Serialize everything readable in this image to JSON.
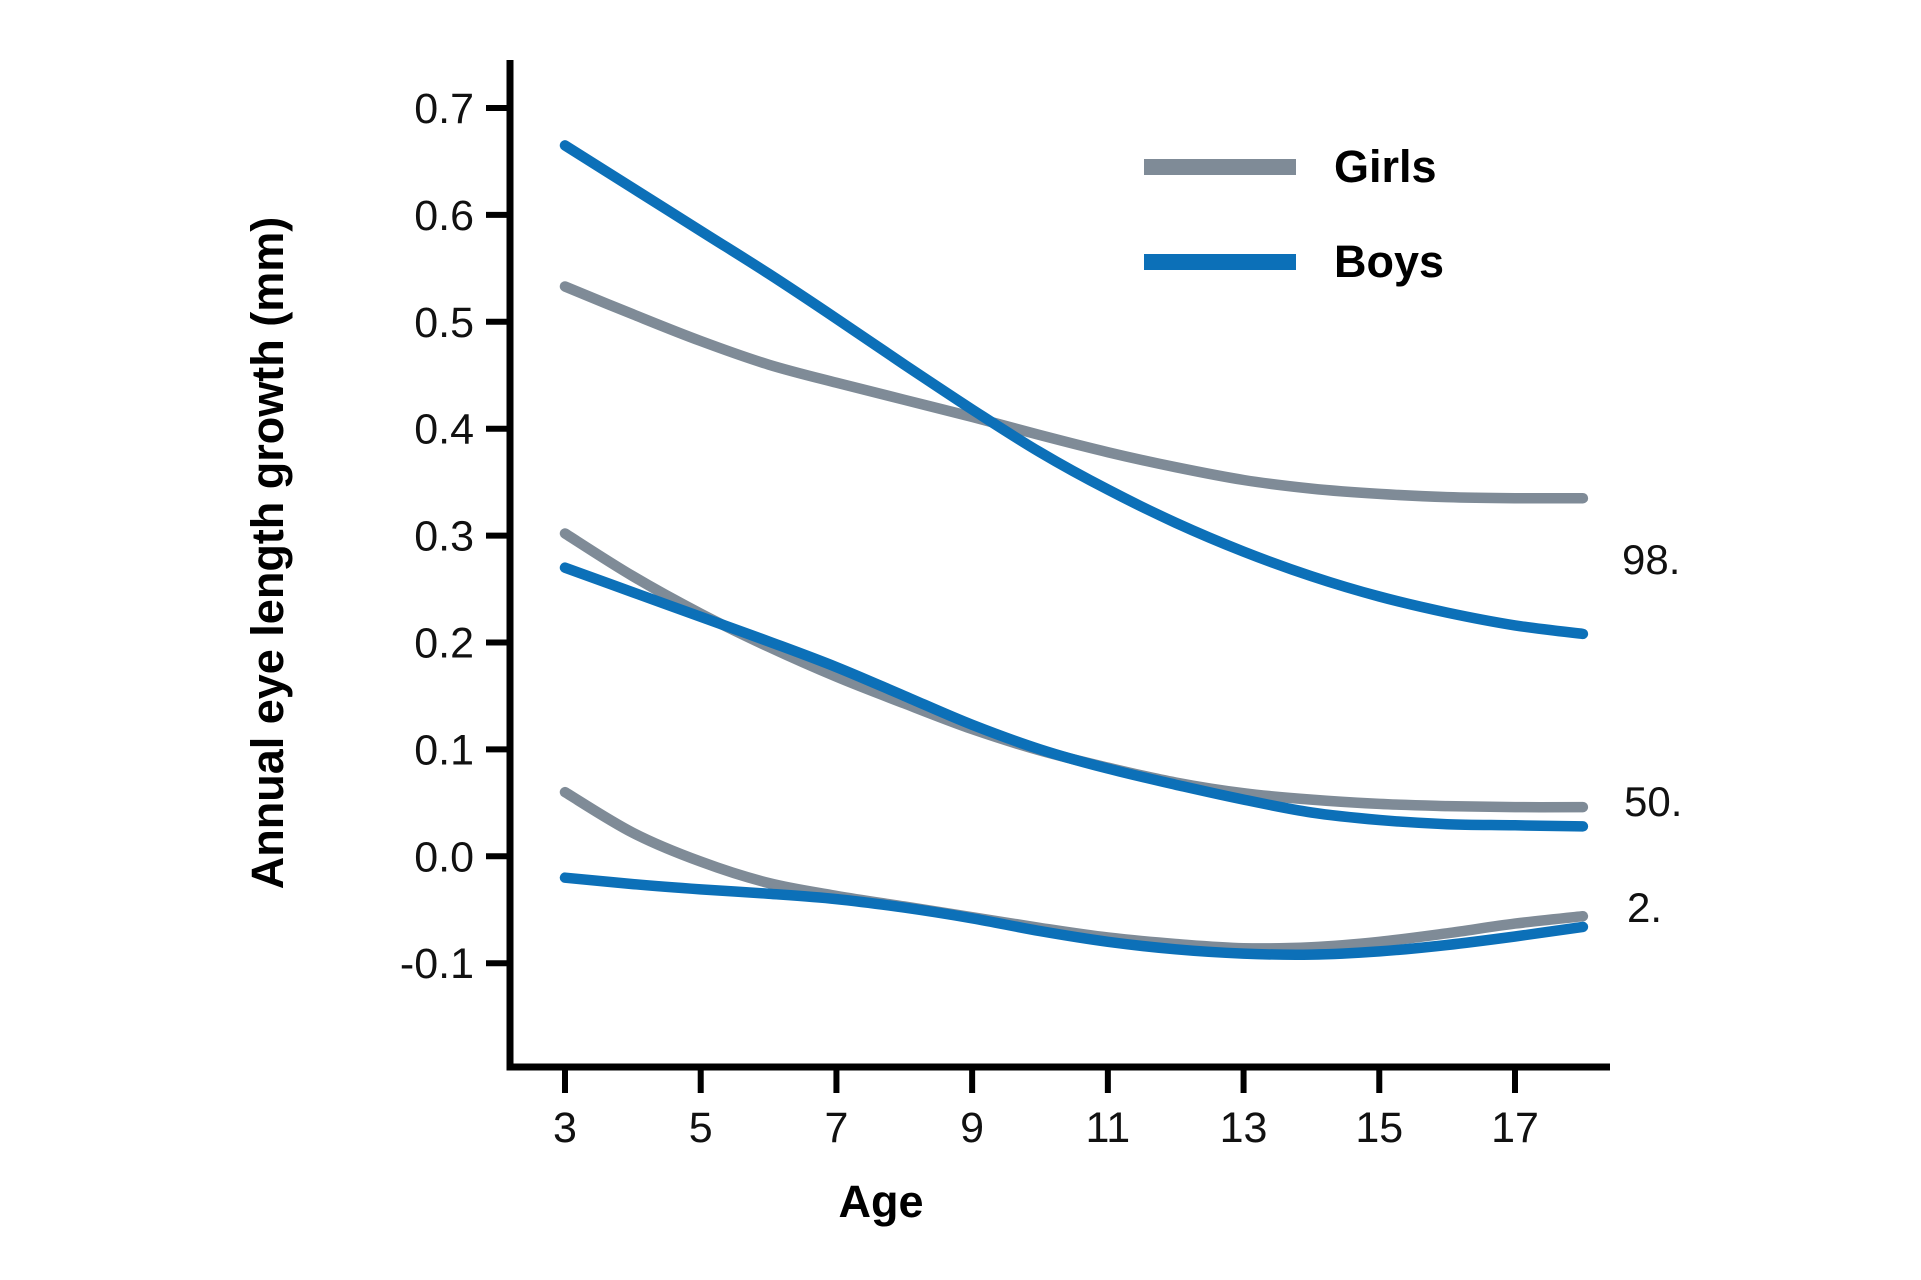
{
  "chart_data": {
    "type": "line",
    "title": "",
    "xlabel": "Age",
    "ylabel": "Annual eye length growth  (mm)",
    "grid": false,
    "xlim": [
      2.2,
      18.4
    ],
    "ylim": [
      -0.197,
      0.743
    ],
    "x_ticks": [
      3,
      5,
      7,
      9,
      11,
      13,
      15,
      17
    ],
    "x_tick_labels": [
      "3",
      "5",
      "7",
      "9",
      "11",
      "13",
      "15",
      "17"
    ],
    "y_ticks": [
      0.7,
      0.6,
      0.5,
      0.4,
      0.3,
      0.2,
      0.1,
      0.0,
      -0.1
    ],
    "y_tick_labels": [
      "0.7",
      "0.6",
      "0.5",
      "0.4",
      "0.3",
      "0.2",
      "0.1",
      "0.0",
      "-0.1"
    ],
    "colors": {
      "girls": "#7f8b97",
      "boys": "#0c70b8",
      "axis": "#000000"
    },
    "legend": {
      "position": "top-right",
      "entries": [
        {
          "label": "Girls",
          "color": "#7f8b97"
        },
        {
          "label": "Boys",
          "color": "#0c70b8"
        }
      ]
    },
    "x": [
      3,
      4,
      5,
      6,
      7,
      8,
      9,
      10,
      11,
      12,
      13,
      14,
      15,
      16,
      17,
      18
    ],
    "series": [
      {
        "name": "Girls 98th percentile",
        "group": "Girls",
        "percentile": "98.",
        "color": "#7f8b97",
        "values": [
          0.533,
          0.507,
          0.482,
          0.46,
          0.443,
          0.427,
          0.411,
          0.394,
          0.378,
          0.364,
          0.352,
          0.344,
          0.339,
          0.336,
          0.335,
          0.335
        ]
      },
      {
        "name": "Girls 50th percentile",
        "group": "Girls",
        "percentile": "50.",
        "color": "#7f8b97",
        "values": [
          0.302,
          0.262,
          0.227,
          0.196,
          0.168,
          0.143,
          0.119,
          0.099,
          0.083,
          0.069,
          0.059,
          0.053,
          0.049,
          0.047,
          0.046,
          0.046
        ]
      },
      {
        "name": "Girls 2nd percentile",
        "group": "Girls",
        "percentile": "2.",
        "color": "#7f8b97",
        "values": [
          0.06,
          0.022,
          -0.005,
          -0.025,
          -0.037,
          -0.047,
          -0.057,
          -0.067,
          -0.076,
          -0.082,
          -0.086,
          -0.085,
          -0.08,
          -0.072,
          -0.063,
          -0.056
        ]
      },
      {
        "name": "Boys 98th percentile",
        "group": "Boys",
        "percentile": "98.",
        "color": "#0c70b8",
        "values": [
          0.665,
          0.625,
          0.585,
          0.545,
          0.503,
          0.46,
          0.418,
          0.378,
          0.343,
          0.312,
          0.285,
          0.262,
          0.243,
          0.228,
          0.216,
          0.208
        ]
      },
      {
        "name": "Boys 50th percentile",
        "group": "Boys",
        "percentile": "50.",
        "color": "#0c70b8",
        "values": [
          0.27,
          0.247,
          0.224,
          0.201,
          0.177,
          0.15,
          0.123,
          0.1,
          0.082,
          0.067,
          0.053,
          0.041,
          0.034,
          0.03,
          0.029,
          0.028
        ]
      },
      {
        "name": "Boys 2nd percentile",
        "group": "Boys",
        "percentile": "2.",
        "color": "#0c70b8",
        "values": [
          -0.02,
          -0.026,
          -0.031,
          -0.035,
          -0.04,
          -0.048,
          -0.058,
          -0.07,
          -0.08,
          -0.087,
          -0.091,
          -0.092,
          -0.089,
          -0.083,
          -0.075,
          -0.066
        ]
      }
    ],
    "right_labels": [
      {
        "text": "98.",
        "y_value": 0.277
      },
      {
        "text": "50.",
        "y_value": 0.051
      },
      {
        "text": "2.",
        "y_value": -0.048
      }
    ]
  }
}
